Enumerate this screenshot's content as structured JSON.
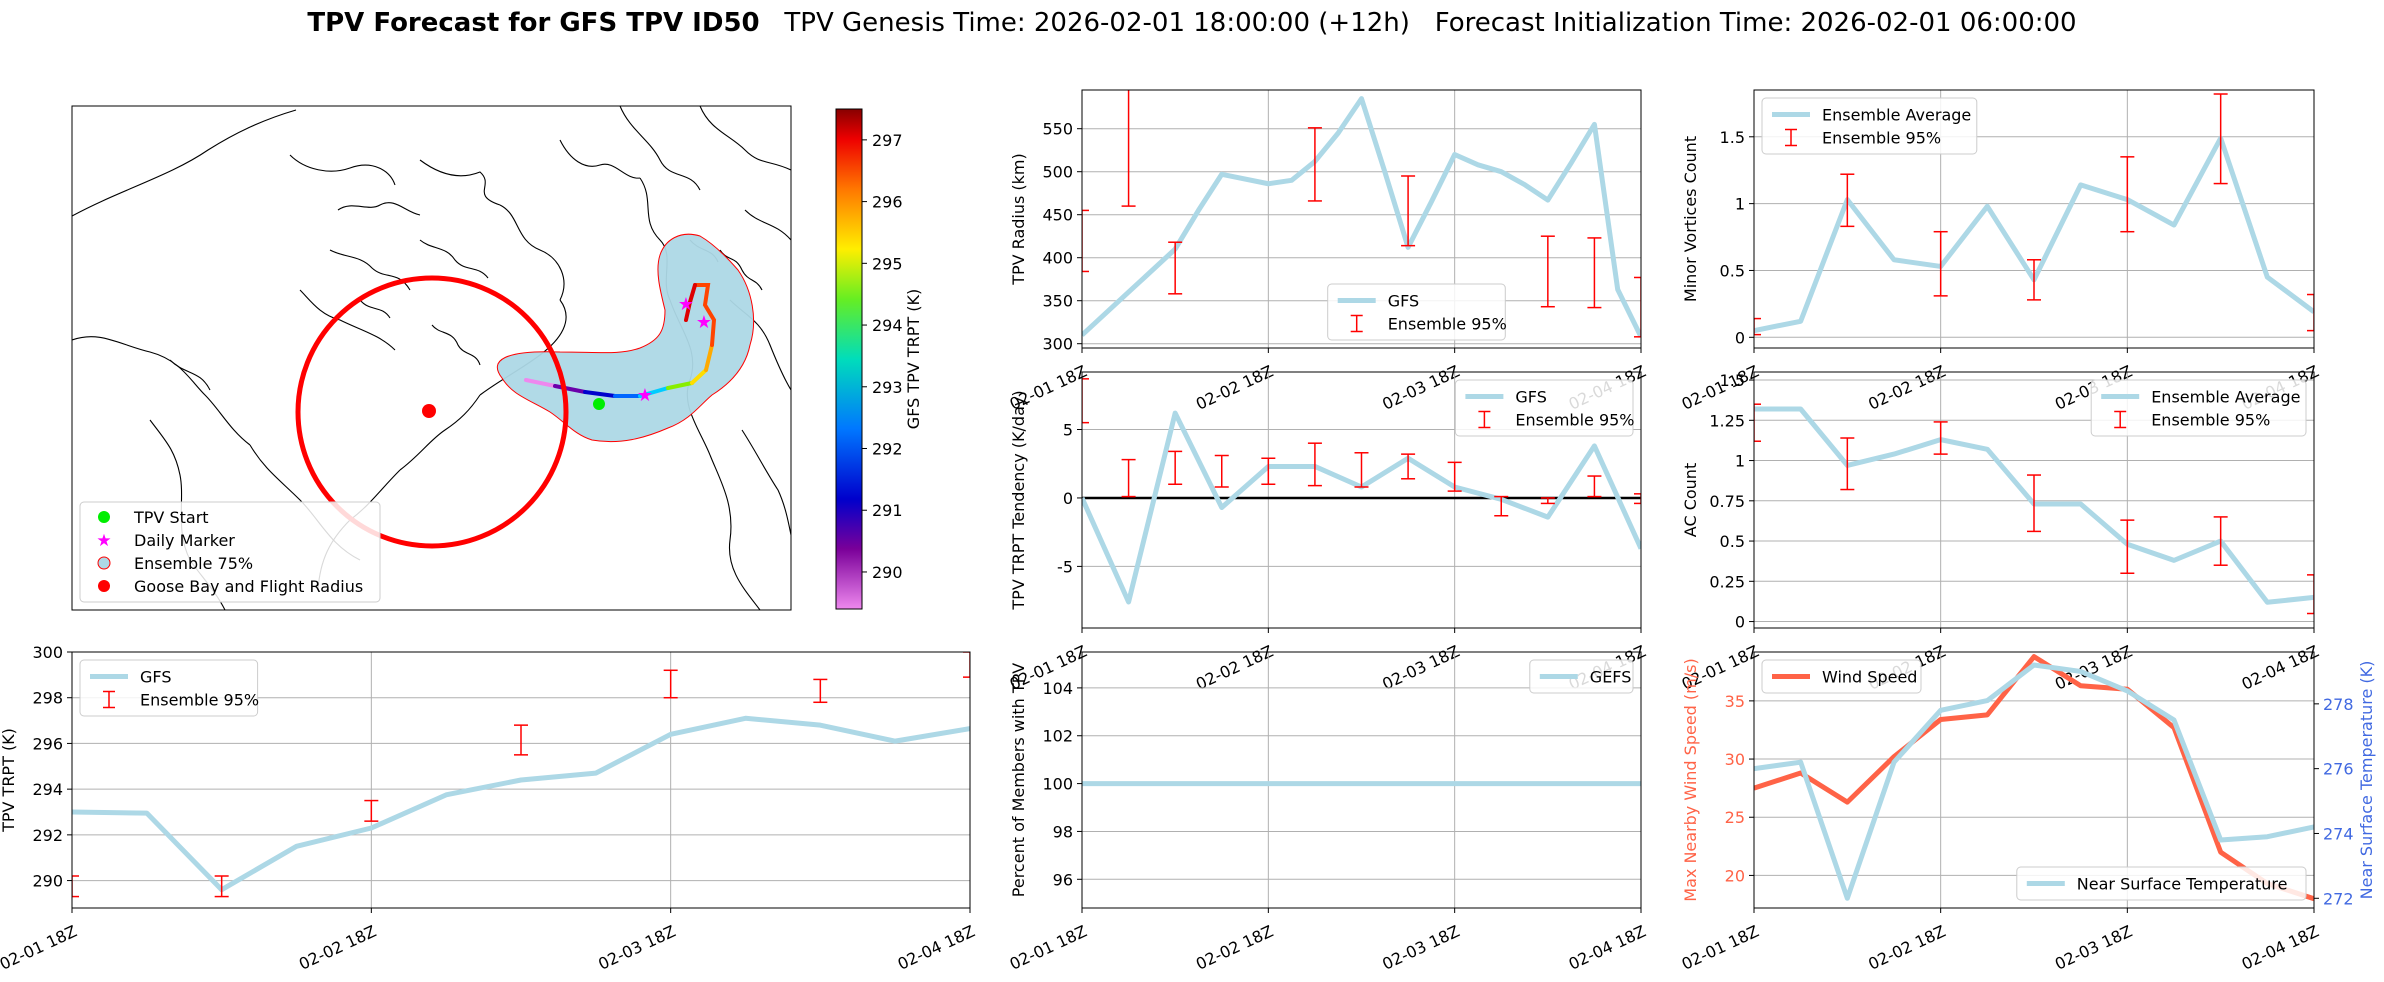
{
  "header": {
    "title_bold": "TPV Forecast for GFS TPV ID50",
    "title_rest": "TPV Genesis Time: 2026-02-01 18:00:00 (+12h)   Forecast Initialization Time: 2026-02-01 06:00:00"
  },
  "colors": {
    "main_line": "#add8e6",
    "error_bar": "#ff0000",
    "wind": "#ff6347",
    "temp_axis": "#4169e1"
  },
  "x_ticks": [
    "02-01 18Z",
    "02-02 18Z",
    "02-03 18Z",
    "02-04 18Z"
  ],
  "map": {
    "colorbar_label": "GFS TPV TRPT (K)",
    "colorbar_ticks": [
      "290",
      "291",
      "292",
      "293",
      "294",
      "295",
      "296",
      "297"
    ],
    "colorbar_range": [
      289.4,
      297.5
    ],
    "legend": [
      "TPV Start",
      "Daily Marker",
      "Ensemble 75%",
      "Goose Bay and Flight Radius"
    ]
  },
  "chart_data": [
    {
      "id": "radius",
      "type": "line",
      "ylabel": "TPV Radius (km)",
      "xlabel": "",
      "ylim": [
        295,
        595
      ],
      "yticks": [
        300,
        350,
        400,
        450,
        500,
        550
      ],
      "xlim": [
        0,
        72
      ],
      "series": [
        {
          "name": "GFS",
          "x": [
            0,
            6,
            12,
            15,
            18,
            24,
            27,
            30,
            33,
            36,
            39,
            42,
            45,
            48,
            51,
            54,
            57,
            60,
            63,
            66,
            69,
            72
          ],
          "values": [
            310,
            360,
            410,
            455,
            497,
            486,
            490,
            512,
            545,
            585,
            500,
            412,
            465,
            520,
            508,
            500,
            485,
            467,
            510,
            555,
            363,
            308
          ]
        }
      ],
      "errors": [
        {
          "name": "Ensemble 95%",
          "x": [
            0,
            6,
            12,
            18,
            24,
            30,
            36,
            42,
            48,
            54,
            60,
            66,
            72
          ],
          "low": [
            384,
            460,
            358,
            null,
            null,
            466,
            null,
            414,
            null,
            null,
            343,
            342,
            308
          ],
          "high": [
            455,
            null,
            418,
            null,
            null,
            551,
            null,
            495,
            null,
            null,
            425,
            423,
            377
          ]
        }
      ],
      "legend": [
        "GFS",
        "Ensemble 95%"
      ]
    },
    {
      "id": "minor",
      "type": "line",
      "ylabel": "Minor Vortices Count",
      "xlabel": "",
      "ylim": [
        -0.08,
        1.85
      ],
      "yticks": [
        0.0,
        0.5,
        1.0,
        1.5
      ],
      "xlim": [
        0,
        72
      ],
      "series": [
        {
          "name": "Ensemble Average",
          "x": [
            0,
            6,
            12,
            18,
            24,
            30,
            36,
            42,
            48,
            54,
            60,
            66,
            72
          ],
          "values": [
            0.05,
            0.12,
            1.03,
            0.58,
            0.53,
            0.98,
            0.43,
            1.14,
            1.03,
            0.84,
            1.49,
            0.45,
            0.19
          ]
        }
      ],
      "errors": [
        {
          "name": "Ensemble 95%",
          "x": [
            0,
            12,
            24,
            36,
            48,
            60,
            72
          ],
          "low": [
            0.02,
            0.83,
            0.31,
            0.28,
            0.79,
            1.15,
            0.05
          ],
          "high": [
            0.14,
            1.22,
            0.79,
            0.58,
            1.35,
            1.82,
            0.32
          ]
        }
      ],
      "legend": [
        "Ensemble Average",
        "Ensemble 95%"
      ]
    },
    {
      "id": "tendency",
      "type": "line",
      "ylabel": "TPV TRPT Tendency (K/day)",
      "xlabel": "",
      "ylim": [
        -9.5,
        9.2
      ],
      "yticks": [
        -5,
        0,
        5
      ],
      "xlim": [
        0,
        72
      ],
      "series": [
        {
          "name": "GFS",
          "x": [
            0,
            6,
            12,
            18,
            24,
            30,
            36,
            42,
            48,
            54,
            60,
            66,
            72
          ],
          "values": [
            0.0,
            -7.6,
            6.2,
            -0.7,
            2.3,
            2.3,
            0.8,
            2.9,
            0.8,
            -0.1,
            -1.4,
            3.8,
            -3.7
          ]
        }
      ],
      "errors": [
        {
          "name": "Ensemble 95%",
          "x": [
            0,
            6,
            12,
            18,
            24,
            30,
            36,
            42,
            48,
            54,
            60,
            66,
            72
          ],
          "low": [
            5.5,
            0.1,
            1.0,
            0.8,
            1.0,
            0.9,
            0.8,
            1.4,
            0.5,
            -1.3,
            -0.4,
            0.1,
            -0.4
          ],
          "high": [
            8.7,
            2.8,
            3.4,
            3.1,
            2.9,
            4.0,
            3.3,
            3.2,
            2.6,
            0.1,
            0.0,
            1.6,
            0.3
          ]
        }
      ],
      "zero_line": 0,
      "legend": [
        "GFS",
        "Ensemble 95%"
      ]
    },
    {
      "id": "ac",
      "type": "line",
      "ylabel": "AC Count",
      "xlabel": "",
      "ylim": [
        -0.04,
        1.55
      ],
      "yticks": [
        0.0,
        0.25,
        0.5,
        0.75,
        1.0,
        1.25,
        1.5
      ],
      "xlim": [
        0,
        72
      ],
      "series": [
        {
          "name": "Ensemble Average",
          "x": [
            0,
            6,
            12,
            18,
            24,
            30,
            36,
            42,
            48,
            54,
            60,
            66,
            72
          ],
          "values": [
            1.32,
            1.32,
            0.97,
            1.04,
            1.13,
            1.07,
            0.73,
            0.73,
            0.48,
            0.38,
            0.5,
            0.12,
            0.15
          ]
        }
      ],
      "errors": [
        {
          "name": "Ensemble 95%",
          "x": [
            0,
            12,
            24,
            36,
            48,
            60,
            72
          ],
          "low": [
            1.12,
            0.82,
            1.04,
            0.56,
            0.3,
            0.35,
            0.05
          ],
          "high": [
            1.35,
            1.14,
            1.24,
            0.91,
            0.63,
            0.65,
            0.29
          ]
        }
      ],
      "legend": [
        "Ensemble Average",
        "Ensemble 95%"
      ]
    },
    {
      "id": "trpt",
      "type": "line",
      "ylabel": "TPV TRPT (K)",
      "xlabel": "",
      "ylim": [
        288.8,
        300.0
      ],
      "yticks": [
        290,
        292,
        294,
        296,
        298,
        300
      ],
      "xlim": [
        0,
        72
      ],
      "series": [
        {
          "name": "GFS",
          "x": [
            0,
            6,
            12,
            18,
            24,
            30,
            36,
            42,
            48,
            54,
            60,
            66,
            72
          ],
          "values": [
            293.0,
            292.95,
            289.6,
            291.5,
            292.3,
            293.75,
            294.4,
            294.7,
            296.4,
            297.1,
            296.8,
            296.1,
            296.65
          ]
        }
      ],
      "errors": [
        {
          "name": "Ensemble 95%",
          "x": [
            0,
            12,
            24,
            36,
            48,
            60,
            72
          ],
          "low": [
            289.3,
            289.3,
            292.6,
            295.5,
            298.0,
            297.8,
            298.9
          ],
          "high": [
            290.2,
            290.2,
            293.5,
            296.8,
            299.2,
            298.8,
            300.0
          ]
        }
      ],
      "legend": [
        "GFS",
        "Ensemble 95%"
      ]
    },
    {
      "id": "percent",
      "type": "line",
      "ylabel": "Percent of Members with TPV",
      "xlabel": "",
      "ylim": [
        94.8,
        105.5
      ],
      "yticks": [
        96,
        98,
        100,
        102,
        104
      ],
      "xlim": [
        0,
        72
      ],
      "series": [
        {
          "name": "GEFS",
          "x": [
            0,
            72
          ],
          "values": [
            100,
            100
          ]
        }
      ],
      "legend": [
        "GEFS"
      ]
    },
    {
      "id": "wind",
      "type": "line",
      "ylabel": "Max Nearby Wind Speed (m/s)",
      "ylabel_right": "Near Surface Temperature (K)",
      "xlabel": "",
      "ylim": [
        17.2,
        39.2
      ],
      "yticks": [
        20,
        25,
        30,
        35
      ],
      "ylim_right": [
        271.7,
        279.6
      ],
      "yticks_right": [
        272,
        274,
        276,
        278
      ],
      "xlim": [
        0,
        72
      ],
      "series": [
        {
          "name": "Wind Speed",
          "x": [
            0,
            6,
            12,
            18,
            24,
            30,
            36,
            42,
            48,
            54,
            60,
            66,
            72
          ],
          "values": [
            27.5,
            28.8,
            26.3,
            30.2,
            33.4,
            33.8,
            38.8,
            36.3,
            36.0,
            32.7,
            22.0,
            19.3,
            18.0
          ]
        },
        {
          "name": "Near Surface Temperature",
          "axis": "right",
          "x": [
            0,
            6,
            12,
            18,
            24,
            30,
            36,
            42,
            48,
            54,
            60,
            66,
            72
          ],
          "values": [
            276.0,
            276.2,
            272.0,
            276.2,
            277.8,
            278.1,
            279.2,
            279.0,
            278.4,
            277.5,
            273.8,
            273.9,
            274.2
          ]
        }
      ],
      "legend": [
        "Wind Speed",
        "Near Surface Temperature"
      ]
    }
  ]
}
